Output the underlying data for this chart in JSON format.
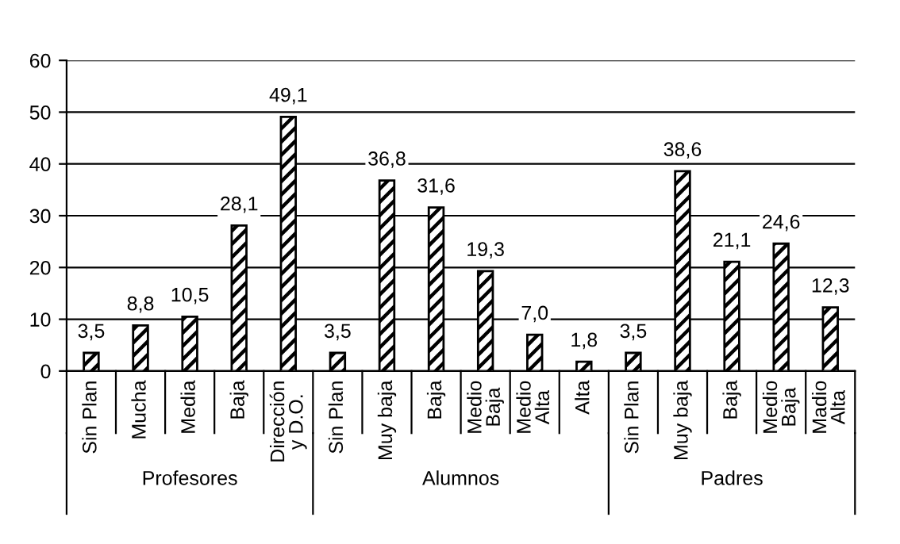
{
  "chart_data": {
    "type": "bar",
    "categories": [
      "Sin Plan",
      "Mucha",
      "Media",
      "Baja",
      "Dirección\ny D.O.",
      "Sin Plan",
      "Muy baja",
      "Baja",
      "Medio\nBaja",
      "Medio\nAlta",
      "Alta",
      "Sin Plan",
      "Muy baja",
      "Baja",
      "Medio\nBaja",
      "Madio\nAlta"
    ],
    "values": [
      3.5,
      8.8,
      10.5,
      28.1,
      49.1,
      3.5,
      36.8,
      31.6,
      19.3,
      7.0,
      1.8,
      3.5,
      38.6,
      21.1,
      24.6,
      12.3
    ],
    "value_labels": [
      "3,5",
      "8,8",
      "10,5",
      "28,1",
      "49,1",
      "3,5",
      "36,8",
      "31,6",
      "19,3",
      "7,0",
      "1,8",
      "3,5",
      "38,6",
      "21,1",
      "24,6",
      "12,3"
    ],
    "color": "#000000",
    "annotations": [
      "Profesores",
      "Alumnos",
      "Padres"
    ],
    "ylim": [
      0,
      60
    ],
    "yticks": [
      0,
      10,
      20,
      30,
      40,
      50,
      60
    ],
    "grid": "y",
    "legend": false
  }
}
